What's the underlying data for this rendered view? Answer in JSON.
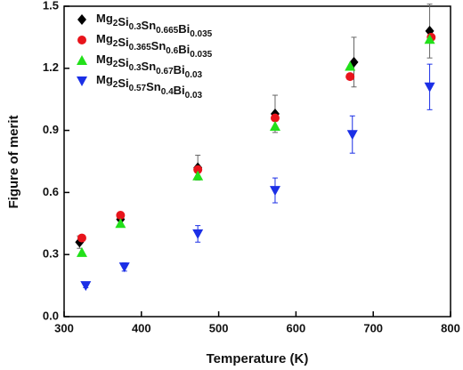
{
  "chart_data": {
    "type": "scatter",
    "xlabel": "Temperature (K)",
    "ylabel": "Figure of merit",
    "xlim": [
      300,
      800
    ],
    "xticks": [
      300,
      400,
      500,
      600,
      700,
      800
    ],
    "ylim": [
      0,
      1.5
    ],
    "yticks": [
      {
        "value": 0,
        "label": "0.0"
      },
      0.3,
      0.6,
      0.9,
      1.2,
      1.5
    ],
    "legend": "upper left",
    "series": [
      {
        "name": "Mg2Si0.3Sn0.665Bi0.035",
        "color": "#000000",
        "marker": "diamond",
        "x": [
          320,
          373,
          473,
          573,
          675,
          773
        ],
        "values": [
          0.36,
          0.47,
          0.72,
          0.98,
          1.23,
          1.38
        ],
        "errors": [
          0.03,
          0.03,
          0.06,
          0.09,
          0.12,
          0.13
        ]
      },
      {
        "name": "Mg2Si0.365Sn0.6Bi0.035",
        "color": "#e8141b",
        "marker": "circle",
        "x": [
          323,
          373,
          473,
          573,
          670,
          775
        ],
        "values": [
          0.38,
          0.49,
          0.71,
          0.96,
          1.16,
          1.35
        ]
      },
      {
        "name": "Mg2Si0.3Sn0.67Bi0.03",
        "color": "#22e01a",
        "marker": "triangle-up",
        "x": [
          323,
          373,
          473,
          573,
          670,
          773
        ],
        "values": [
          0.31,
          0.45,
          0.68,
          0.92,
          1.21,
          1.34
        ]
      },
      {
        "name": "Mg2Si0.57Sn0.4Bi0.03",
        "color": "#1b2fe6",
        "marker": "triangle-down",
        "x": [
          328,
          378,
          473,
          573,
          673,
          773
        ],
        "values": [
          0.15,
          0.24,
          0.4,
          0.61,
          0.88,
          1.11
        ],
        "errors": [
          0.01,
          0.02,
          0.04,
          0.06,
          0.09,
          0.11
        ]
      }
    ]
  }
}
